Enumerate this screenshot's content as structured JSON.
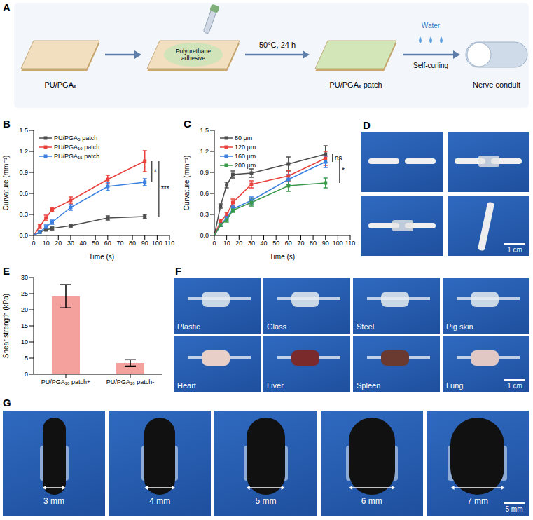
{
  "chart_data": [
    {
      "panel": "B",
      "type": "line",
      "x_label": "Time (s)",
      "y_label": "Curvature (mm⁻¹)",
      "x": [
        0,
        5,
        10,
        15,
        30,
        60,
        90
      ],
      "series": [
        {
          "name": "PU/PGA₅ patch",
          "color": "#4d4d4d",
          "values": [
            0,
            0.05,
            0.08,
            0.1,
            0.14,
            0.25,
            0.27
          ],
          "errors": [
            0,
            0.01,
            0.01,
            0.02,
            0.02,
            0.03,
            0.03
          ]
        },
        {
          "name": "PU/PGA₁₀ patch",
          "color": "#e8413c",
          "values": [
            0,
            0.13,
            0.25,
            0.37,
            0.5,
            0.8,
            1.06
          ],
          "errors": [
            0,
            0.03,
            0.04,
            0.03,
            0.05,
            0.06,
            0.15
          ]
        },
        {
          "name": "PU/PGA₁₅ patch",
          "color": "#3b7fe0",
          "values": [
            0,
            0.05,
            0.12,
            0.19,
            0.4,
            0.7,
            0.76
          ],
          "errors": [
            0,
            0.02,
            0.03,
            0.03,
            0.04,
            0.06,
            0.05
          ]
        }
      ],
      "xlim": [
        0,
        110
      ],
      "xticks": [
        0,
        10,
        20,
        30,
        40,
        50,
        60,
        70,
        80,
        90,
        100,
        110
      ],
      "ylim": [
        0,
        1.5
      ],
      "yticks": [
        {
          "value": 0,
          "label": "0.0"
        },
        0.3,
        0.6,
        0.9,
        1.2,
        1.5
      ],
      "legend": "upper left",
      "marker": "square",
      "annotations": [
        {
          "text": "*",
          "between": [
            "PU/PGA₁₀ patch",
            "PU/PGA₁₅ patch"
          ]
        },
        {
          "text": "***",
          "between": [
            "PU/PGA₁₀ patch",
            "PU/PGA₅ patch"
          ]
        }
      ]
    },
    {
      "panel": "C",
      "type": "line",
      "x_label": "Time (s)",
      "y_label": "Curvature (mm⁻¹)",
      "x": [
        0,
        5,
        10,
        15,
        30,
        60,
        90
      ],
      "series": [
        {
          "name": "80 μm",
          "color": "#4d4d4d",
          "values": [
            0,
            0.42,
            0.72,
            0.87,
            0.89,
            1.02,
            1.16
          ],
          "errors": [
            0,
            0.03,
            0.04,
            0.05,
            0.06,
            0.1,
            0.12
          ]
        },
        {
          "name": "120 μm",
          "color": "#e8413c",
          "values": [
            0,
            0.2,
            0.3,
            0.47,
            0.73,
            0.85,
            1.1
          ],
          "errors": [
            0,
            0.03,
            0.03,
            0.05,
            0.05,
            0.08,
            0.1
          ]
        },
        {
          "name": "160 μm",
          "color": "#3b7fe0",
          "values": [
            0,
            0.15,
            0.25,
            0.38,
            0.5,
            0.8,
            1.05
          ],
          "errors": [
            0,
            0.02,
            0.03,
            0.04,
            0.05,
            0.07,
            0.08
          ]
        },
        {
          "name": "200 μm",
          "color": "#3a9a4a",
          "values": [
            0,
            0.15,
            0.22,
            0.36,
            0.47,
            0.71,
            0.75
          ],
          "errors": [
            0,
            0.02,
            0.03,
            0.03,
            0.05,
            0.08,
            0.07
          ]
        }
      ],
      "xlim": [
        0,
        110
      ],
      "xticks": [
        0,
        10,
        20,
        30,
        40,
        50,
        60,
        70,
        80,
        90,
        100,
        110
      ],
      "ylim": [
        0,
        1.5
      ],
      "yticks": [
        {
          "value": 0,
          "label": "0.0"
        },
        0.3,
        0.6,
        0.9,
        1.2,
        1.5
      ],
      "legend": "upper left",
      "marker": "square",
      "annotations": [
        {
          "text": "ns",
          "between": [
            "80 μm",
            "160 μm"
          ]
        },
        {
          "text": "*",
          "between": [
            "120 μm",
            "200 μm"
          ]
        }
      ]
    },
    {
      "panel": "E",
      "type": "bar",
      "y_label": "Shear strength (kPa)",
      "categories": [
        "PU/PGA₁₀ patch+",
        "PU/PGA₁₀ patch-"
      ],
      "values": [
        24.2,
        3.5
      ],
      "errors": [
        3.6,
        1.0
      ],
      "color": "#f4a09c",
      "ylim": [
        0,
        30
      ],
      "yticks": [
        0,
        5,
        10,
        15,
        20,
        25,
        30
      ]
    }
  ],
  "diagram": {
    "panel": "A",
    "materials": [
      "PU/PGAₓ",
      "PU/PGAₓ patch",
      "Nerve conduit"
    ],
    "adhesive": "Polyurethane adhesive",
    "condition": "50°C, 24 h",
    "medium": "Water",
    "process": "Self-curling"
  },
  "photos": [
    {
      "panel": "D",
      "scale_bar": "1 cm"
    },
    {
      "panel": "F",
      "labels": [
        "Plastic",
        "Glass",
        "Steel",
        "Pig skin",
        "Heart",
        "Liver",
        "Spleen",
        "Lung"
      ],
      "scale_bar": "1 cm"
    },
    {
      "panel": "G",
      "labels": [
        "3 mm",
        "4 mm",
        "5 mm",
        "6 mm",
        "7 mm"
      ],
      "scale_bar": "5 mm"
    }
  ]
}
